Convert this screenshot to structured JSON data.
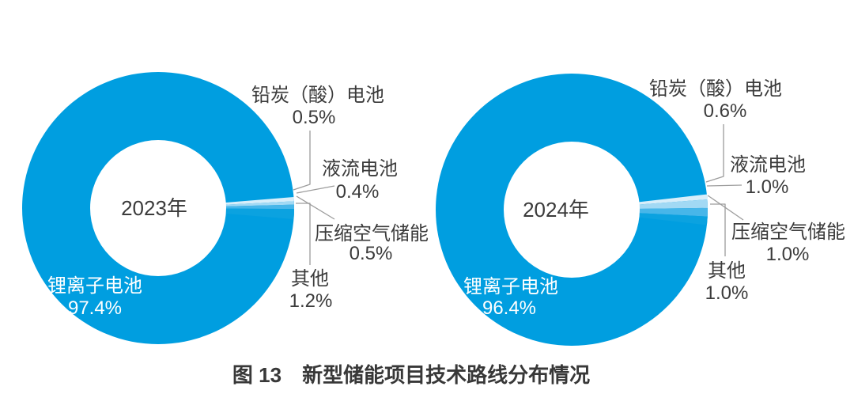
{
  "figure": {
    "caption": "图 13　新型储能项目技术路线分布情况"
  },
  "colors": {
    "lithium_main_blue": "#009EE0",
    "lead_carbon_light": "#D8EEFA",
    "flow_battery_light": "#A2D9F4",
    "caes_mid_blue": "#47B6E9",
    "other_blue": "#0BA2E0",
    "label_text": "#3B3B3B",
    "leader_line": "#9C9C9C",
    "caption_text": "#383838",
    "background": "#FFFFFF"
  },
  "chart_data": [
    {
      "type": "pie",
      "variant": "donut",
      "center_label": "2023年",
      "categories": [
        "锂离子电池",
        "铅炭（酸）电池",
        "液流电池",
        "压缩空气储能",
        "其他"
      ],
      "values": [
        97.4,
        0.5,
        0.4,
        0.5,
        1.2
      ],
      "value_labels": [
        "97.4%",
        "0.5%",
        "0.4%",
        "0.5%",
        "1.2%"
      ],
      "colors": [
        "#009EE0",
        "#D8EEFA",
        "#A2D9F4",
        "#47B6E9",
        "#0BA2E0"
      ],
      "unit": "%",
      "legend_position": "outside-callouts-right",
      "small_slices_anchor": "3-oclock"
    },
    {
      "type": "pie",
      "variant": "donut",
      "center_label": "2024年",
      "categories": [
        "锂离子电池",
        "铅炭（酸）电池",
        "液流电池",
        "压缩空气储能",
        "其他"
      ],
      "values": [
        96.4,
        0.6,
        1.0,
        1.0,
        1.0
      ],
      "value_labels": [
        "96.4%",
        "0.6%",
        "1.0%",
        "1.0%",
        "1.0%"
      ],
      "colors": [
        "#009EE0",
        "#D8EEFA",
        "#A2D9F4",
        "#47B6E9",
        "#0BA2E0"
      ],
      "unit": "%",
      "legend_position": "outside-callouts-right",
      "small_slices_anchor": "3-oclock"
    }
  ]
}
